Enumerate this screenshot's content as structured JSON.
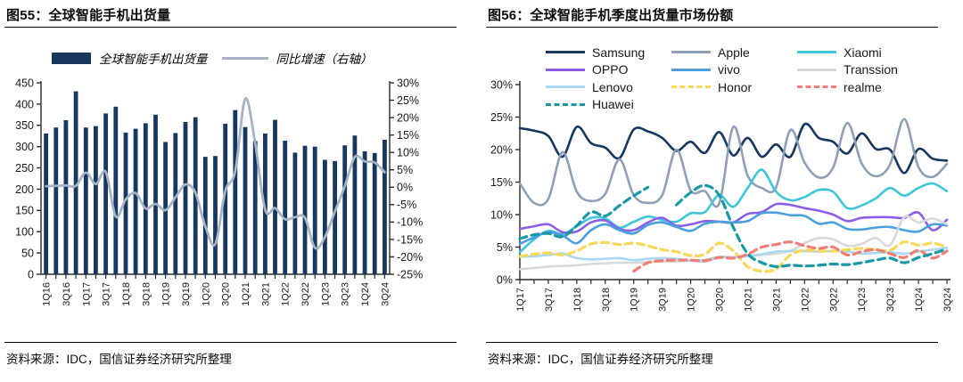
{
  "fig55": {
    "title": "图55：全球智能手机出货量",
    "source": "资料来源：IDC，国信证券经济研究所整理",
    "legend": {
      "bar_label": "全球智能手机出货量",
      "line_label": "同比增速（右轴）"
    },
    "chart_data": {
      "type": "bar+line",
      "title": "全球智能手机出货量",
      "categories": [
        "1Q16",
        "2Q16",
        "3Q16",
        "4Q16",
        "1Q17",
        "2Q17",
        "3Q17",
        "4Q17",
        "1Q18",
        "2Q18",
        "3Q18",
        "4Q18",
        "1Q19",
        "2Q19",
        "3Q19",
        "4Q19",
        "1Q20",
        "2Q20",
        "3Q20",
        "4Q20",
        "1Q21",
        "2Q21",
        "3Q21",
        "4Q21",
        "1Q22",
        "2Q22",
        "3Q22",
        "4Q22",
        "1Q23",
        "2Q23",
        "3Q23",
        "4Q23",
        "1Q24",
        "2Q24",
        "3Q24"
      ],
      "x_tick_labels": [
        "1Q16",
        "3Q16",
        "1Q17",
        "3Q17",
        "1Q18",
        "3Q18",
        "1Q19",
        "3Q19",
        "1Q20",
        "3Q20",
        "1Q21",
        "3Q21",
        "1Q22",
        "3Q22",
        "1Q23",
        "3Q23",
        "1Q24",
        "3Q24"
      ],
      "label_every": 2,
      "bar_series": {
        "name": "全球智能手机出货量",
        "color": "#17375e",
        "axis": "left",
        "values": [
          331,
          345,
          362,
          430,
          345,
          348,
          378,
          394,
          333,
          342,
          355,
          375,
          311,
          332,
          358,
          369,
          276,
          278,
          354,
          386,
          346,
          313,
          331,
          363,
          314,
          286,
          302,
          300,
          269,
          266,
          303,
          326,
          289,
          285,
          316
        ]
      },
      "line_series": {
        "name": "同比增速（右轴）",
        "color": "#a6b2c5",
        "axis": "right",
        "values": [
          0.3,
          0.4,
          0.5,
          0.4,
          4.2,
          0.9,
          4.4,
          -8.4,
          -3.5,
          -1.7,
          -6.1,
          -4.8,
          -6.6,
          -2.9,
          0.8,
          -1.6,
          -11.3,
          -16.3,
          -1.1,
          4.6,
          25.4,
          12.6,
          -6.5,
          -6.0,
          -9.2,
          -8.6,
          -8.8,
          -17.4,
          -14.3,
          -7.0,
          0.3,
          8.7,
          7.4,
          7.1,
          4.3
        ]
      },
      "left_axis": {
        "min": 0,
        "max": 450,
        "step": 50,
        "tick_labels": [
          "0",
          "50",
          "100",
          "150",
          "200",
          "250",
          "300",
          "350",
          "400",
          "450"
        ]
      },
      "right_axis": {
        "min": -25,
        "max": 30,
        "step": 5,
        "tick_labels": [
          "-25%",
          "-20%",
          "-15%",
          "-10%",
          "-5%",
          "0%",
          "5%",
          "10%",
          "15%",
          "20%",
          "25%",
          "30%"
        ]
      },
      "grid": false,
      "legend_position": "top"
    }
  },
  "fig56": {
    "title": "图56：全球智能手机季度出货量市场份额",
    "source": "资料来源：IDC，国信证券经济研究所整理",
    "chart_data": {
      "type": "line",
      "title": "全球智能手机季度出货量市场份额",
      "categories": [
        "1Q17",
        "2Q17",
        "3Q17",
        "4Q17",
        "1Q18",
        "2Q18",
        "3Q18",
        "4Q18",
        "1Q19",
        "2Q19",
        "3Q19",
        "4Q19",
        "1Q20",
        "2Q20",
        "3Q20",
        "4Q20",
        "1Q21",
        "2Q21",
        "3Q21",
        "4Q21",
        "1Q22",
        "2Q22",
        "3Q22",
        "4Q22",
        "1Q23",
        "2Q23",
        "3Q23",
        "4Q23",
        "1Q24",
        "2Q24",
        "3Q24"
      ],
      "x_tick_labels": [
        "1Q17",
        "3Q17",
        "1Q18",
        "3Q18",
        "1Q19",
        "3Q19",
        "1Q20",
        "3Q20",
        "1Q21",
        "3Q21",
        "1Q22",
        "3Q22",
        "1Q23",
        "3Q23",
        "1Q24",
        "3Q24"
      ],
      "label_every": 2,
      "y_axis": {
        "min": 0,
        "max": 30,
        "step": 5,
        "unit": "percent",
        "tick_labels": [
          "0%",
          "5%",
          "10%",
          "15%",
          "20%",
          "25%",
          "30%"
        ]
      },
      "grid": false,
      "legend_position": "top",
      "legend_rows": [
        [
          "Samsung",
          "Apple",
          "Xiaomi"
        ],
        [
          "OPPO",
          "vivo",
          "Transsion"
        ],
        [
          "Lenovo",
          "Honor",
          "realme"
        ],
        [
          "Huawei"
        ]
      ],
      "series": [
        {
          "name": "Samsung",
          "color": "#17375e",
          "dashed": false,
          "values": [
            23.3,
            22.9,
            22.1,
            18.9,
            23.5,
            21.0,
            20.3,
            18.7,
            23.1,
            22.8,
            21.8,
            19.8,
            21.2,
            19.5,
            22.7,
            19.1,
            21.8,
            18.9,
            20.8,
            18.9,
            23.9,
            21.8,
            21.2,
            19.4,
            22.5,
            20.1,
            20.0,
            16.4,
            20.1,
            18.6,
            18.3
          ]
        },
        {
          "name": "Apple",
          "color": "#8f9fb6",
          "dashed": false,
          "values": [
            14.8,
            11.8,
            12.4,
            19.6,
            13.5,
            12.1,
            13.2,
            18.5,
            13.0,
            11.8,
            13.0,
            20.0,
            13.7,
            13.6,
            11.7,
            23.5,
            16.0,
            14.1,
            14.2,
            23.0,
            18.0,
            15.7,
            17.2,
            24.1,
            17.9,
            15.9,
            17.7,
            24.7,
            17.3,
            15.8,
            17.8
          ]
        },
        {
          "name": "Xiaomi",
          "color": "#3fc6d6",
          "dashed": false,
          "values": [
            4.2,
            6.2,
            7.5,
            7.0,
            8.2,
            9.5,
            9.4,
            8.0,
            8.9,
            9.7,
            9.2,
            8.9,
            10.2,
            10.4,
            13.0,
            11.2,
            14.1,
            16.9,
            13.5,
            12.2,
            12.7,
            13.8,
            13.5,
            11.0,
            11.4,
            12.5,
            14.1,
            12.9,
            14.1,
            14.8,
            13.6
          ]
        },
        {
          "name": "OPPO",
          "color": "#8a5fe6",
          "dashed": false,
          "values": [
            7.8,
            8.2,
            8.5,
            7.3,
            7.4,
            8.8,
            9.1,
            7.8,
            7.6,
            8.8,
            9.5,
            8.3,
            8.5,
            9.0,
            8.9,
            8.8,
            10.1,
            10.4,
            11.6,
            11.5,
            11.0,
            10.6,
            10.0,
            9.0,
            9.5,
            9.6,
            9.6,
            9.5,
            10.3,
            7.6,
            9.2
          ]
        },
        {
          "name": "vivo",
          "color": "#4aa0dc",
          "dashed": false,
          "values": [
            5.5,
            6.5,
            7.3,
            6.8,
            5.6,
            7.6,
            8.5,
            7.6,
            7.1,
            8.4,
            8.8,
            8.1,
            7.5,
            8.6,
            8.9,
            8.8,
            9.0,
            10.2,
            10.3,
            9.9,
            9.8,
            8.6,
            8.8,
            7.8,
            7.7,
            8.0,
            8.1,
            7.6,
            7.4,
            8.5,
            8.3
          ]
        },
        {
          "name": "Transsion",
          "color": "#d8d8d8",
          "dashed": false,
          "values": [
            1.6,
            1.8,
            2.0,
            2.1,
            2.2,
            2.4,
            2.5,
            2.6,
            2.6,
            2.7,
            2.8,
            2.8,
            2.9,
            2.8,
            3.4,
            3.5,
            3.6,
            3.8,
            4.0,
            4.4,
            5.6,
            6.4,
            6.2,
            5.2,
            5.5,
            6.4,
            5.3,
            9.6,
            8.8,
            9.4,
            8.5
          ]
        },
        {
          "name": "Lenovo",
          "color": "#a9d6f0",
          "dashed": false,
          "values": [
            3.5,
            3.6,
            3.8,
            4.0,
            3.3,
            3.1,
            3.2,
            3.3,
            3.0,
            3.2,
            3.3,
            3.2,
            2.9,
            3.0,
            3.5,
            3.4,
            3.6,
            3.9,
            4.3,
            4.4,
            4.4,
            4.3,
            4.4,
            4.3,
            4.0,
            4.1,
            4.2,
            4.0,
            4.3,
            4.6,
            4.9
          ]
        },
        {
          "name": "Honor",
          "color": "#f6d85a",
          "dashed": true,
          "values": [
            3.6,
            3.9,
            4.1,
            3.8,
            4.4,
            5.5,
            5.7,
            5.4,
            5.6,
            5.2,
            4.6,
            4.3,
            3.7,
            3.9,
            5.6,
            4.4,
            2.0,
            1.3,
            1.6,
            3.8,
            4.5,
            4.4,
            4.4,
            4.6,
            4.8,
            4.6,
            4.5,
            5.8,
            5.3,
            5.6,
            5.0
          ]
        },
        {
          "name": "realme",
          "color": "#ee7e76",
          "dashed": true,
          "values": [
            null,
            null,
            null,
            null,
            null,
            null,
            null,
            null,
            1.3,
            2.6,
            2.9,
            3.0,
            3.0,
            2.9,
            3.4,
            3.3,
            3.9,
            5.0,
            5.4,
            5.8,
            5.2,
            4.8,
            5.0,
            3.8,
            4.3,
            4.6,
            4.0,
            3.4,
            4.5,
            3.3,
            4.4
          ]
        },
        {
          "name": "Huawei",
          "color": "#1898a5",
          "dashed": true,
          "values": [
            6.3,
            6.9,
            7.1,
            6.6,
            8.3,
            10.4,
            9.8,
            11.4,
            12.9,
            14.2,
            null,
            11.5,
            13.4,
            14.5,
            13.0,
            8.0,
            4.0,
            2.6,
            2.0,
            2.2,
            2.1,
            2.2,
            2.4,
            2.3,
            2.6,
            3.0,
            3.3,
            2.6,
            3.4,
            4.0,
            4.7
          ]
        }
      ]
    }
  }
}
